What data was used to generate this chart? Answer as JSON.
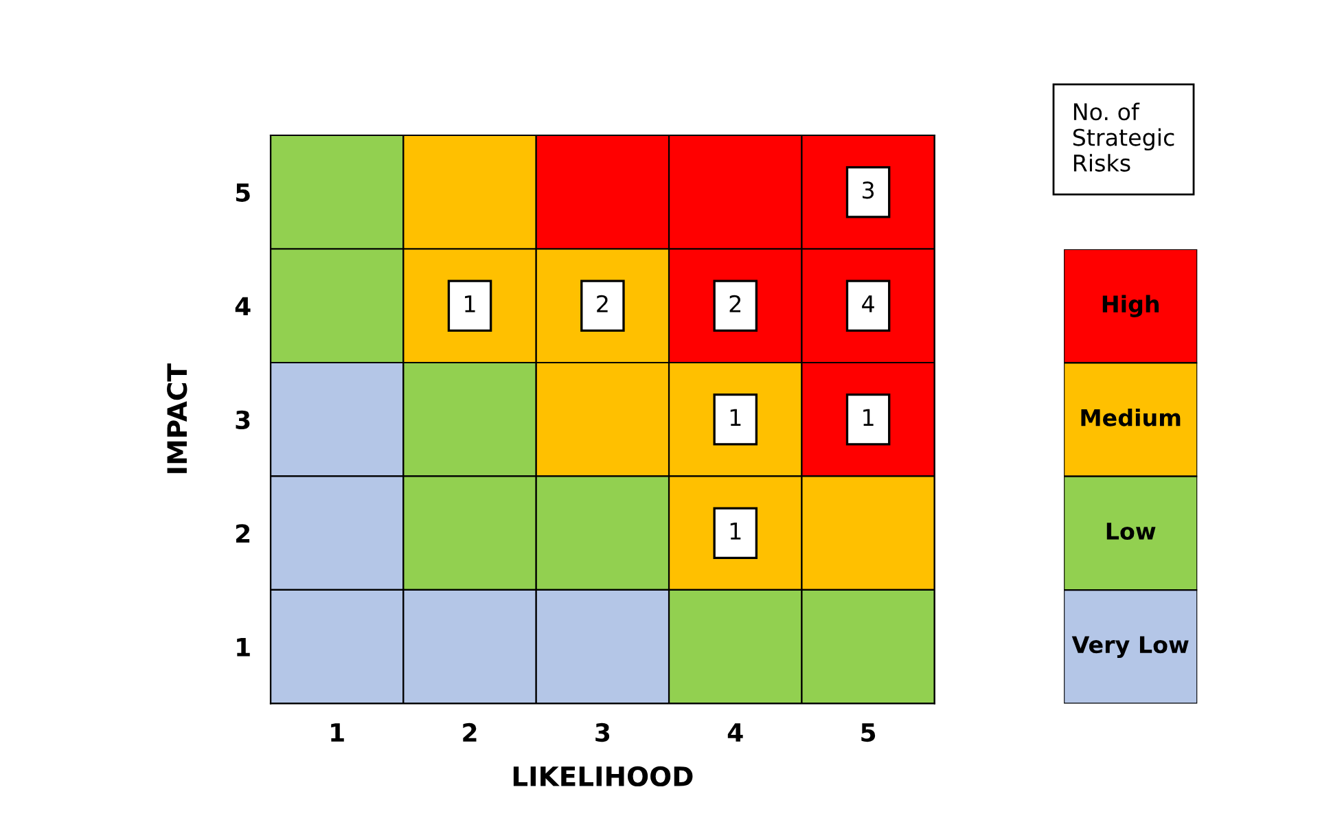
{
  "chart_data": [
    {
      "type": "heatmap",
      "xlabel": "LIKELIHOOD",
      "ylabel": "IMPACT",
      "categories": [
        "1",
        "2",
        "3",
        "4",
        "5"
      ],
      "y_categories": [
        "5",
        "4",
        "3",
        "2",
        "1"
      ],
      "cells": [
        [
          null,
          null,
          null,
          null,
          3
        ],
        [
          null,
          1,
          2,
          2,
          4
        ],
        [
          null,
          null,
          null,
          1,
          1
        ],
        [
          null,
          null,
          null,
          1,
          null
        ],
        [
          null,
          null,
          null,
          null,
          null
        ]
      ],
      "data_labels": true,
      "colors": [
        [
          "#92d050",
          "#ffc000",
          "#ff0000",
          "#ff0000",
          "#ff0000"
        ],
        [
          "#92d050",
          "#ffc000",
          "#ffc000",
          "#ff0000",
          "#ff0000"
        ],
        [
          "#b4c6e7",
          "#92d050",
          "#ffc000",
          "#ffc000",
          "#ff0000"
        ],
        [
          "#b4c6e7",
          "#92d050",
          "#92d050",
          "#ffc000",
          "#ffc000"
        ],
        [
          "#b4c6e7",
          "#b4c6e7",
          "#b4c6e7",
          "#92d050",
          "#92d050"
        ]
      ],
      "annotations": [
        "No. of\nStrategic\nRisks"
      ]
    },
    {
      "type": "other",
      "categories": [
        "High",
        "Medium",
        "Low",
        "Very Low"
      ],
      "colors": [
        "#ff0000",
        "#ffc000",
        "#92d050",
        "#b4c6e7"
      ]
    }
  ]
}
